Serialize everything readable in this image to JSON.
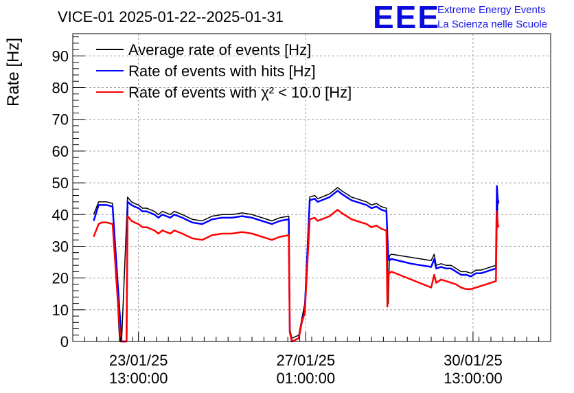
{
  "chart_data": {
    "type": "line",
    "title": "VICE-01 2025-01-22--2025-01-31",
    "ylabel": "Rate [Hz]",
    "xlabel": "",
    "ylim": [
      0,
      97
    ],
    "yticks": [
      "0",
      "10",
      "20",
      "30",
      "40",
      "50",
      "60",
      "70",
      "80",
      "90"
    ],
    "xticks": [
      {
        "date": "23/01/25",
        "time": "13:00:00",
        "t": 33.0
      },
      {
        "date": "27/01/25",
        "time": "01:00:00",
        "t": 117.0
      },
      {
        "date": "30/01/25",
        "time": "13:00:00",
        "t": 201.0
      }
    ],
    "grid": true,
    "legend_position": "top-left",
    "series": [
      {
        "name": "Average rate of events [Hz]",
        "color": "#000000",
        "x": [
          10.5,
          13.0,
          14.5,
          17.0,
          20.0,
          23.5,
          24.5,
          27.5,
          29.5,
          31.0,
          33.0,
          35.0,
          37.0,
          39.0,
          41.0,
          43.0,
          45.0,
          47.0,
          49.0,
          51.0,
          55.0,
          60.0,
          65.0,
          70.0,
          75.0,
          80.0,
          85.0,
          90.0,
          95.0,
          100.0,
          104.0,
          108.5,
          109.0,
          110.0,
          113.5,
          115.0,
          116.5,
          119.0,
          121.5,
          123.0,
          125.0,
          127.0,
          129.0,
          131.0,
          133.0,
          135.0,
          137.5,
          140.0,
          142.5,
          145.0,
          147.5,
          150.0,
          152.5,
          155.0,
          157.5,
          158.5,
          159.0,
          160.0,
          170.0,
          180.0,
          181.5,
          182.5,
          185.0,
          187.5,
          190.0,
          192.5,
          195.0,
          197.5,
          200.0,
          202.5,
          205.0,
          207.5,
          210.0,
          212.5,
          213.5,
          214.0
        ],
        "y": [
          40.0,
          44.0,
          44.0,
          44.0,
          43.5,
          0.0,
          0.0,
          45.5,
          44.0,
          43.5,
          43.0,
          42.0,
          42.0,
          41.5,
          41.0,
          40.0,
          41.0,
          40.5,
          40.0,
          41.0,
          40.0,
          38.5,
          38.0,
          39.5,
          40.0,
          40.0,
          40.5,
          40.0,
          39.0,
          38.0,
          39.0,
          39.5,
          4.0,
          1.0,
          2.0,
          7.0,
          12.0,
          45.5,
          46.0,
          45.0,
          45.5,
          46.0,
          46.5,
          47.5,
          48.5,
          47.5,
          46.5,
          45.5,
          45.0,
          44.5,
          44.0,
          43.0,
          43.5,
          42.5,
          42.0,
          12.0,
          27.0,
          27.5,
          26.5,
          25.5,
          27.5,
          24.0,
          24.5,
          24.0,
          24.0,
          23.0,
          22.0,
          22.0,
          21.5,
          22.5,
          22.5,
          23.0,
          23.5,
          24.0,
          45.0,
          44.0
        ]
      },
      {
        "name": "Rate of events with hits [Hz]",
        "color": "#0000ff",
        "x": [
          10.5,
          13.0,
          14.5,
          17.0,
          20.0,
          24.5,
          27.0,
          27.5,
          29.5,
          31.0,
          33.0,
          35.0,
          37.0,
          39.0,
          41.0,
          43.0,
          45.0,
          47.0,
          49.0,
          51.0,
          55.0,
          60.0,
          65.0,
          70.0,
          75.0,
          80.0,
          85.0,
          90.0,
          95.0,
          100.0,
          104.0,
          108.5,
          109.0,
          110.0,
          113.5,
          115.0,
          116.5,
          119.0,
          121.5,
          123.0,
          125.0,
          127.0,
          129.0,
          131.0,
          133.0,
          135.0,
          137.5,
          140.0,
          142.5,
          145.0,
          147.5,
          150.0,
          152.5,
          155.0,
          157.5,
          158.5,
          159.0,
          160.0,
          170.0,
          180.0,
          181.5,
          182.5,
          185.0,
          187.5,
          190.0,
          192.5,
          195.0,
          197.5,
          200.0,
          202.5,
          205.0,
          207.5,
          210.0,
          212.5,
          213.0,
          213.5,
          214.0
        ],
        "y": [
          38.0,
          43.0,
          43.0,
          43.0,
          42.5,
          0.0,
          0.0,
          44.0,
          43.0,
          42.5,
          42.0,
          41.0,
          41.0,
          40.5,
          40.0,
          39.0,
          40.0,
          39.5,
          39.0,
          40.0,
          39.0,
          37.5,
          37.0,
          38.5,
          39.0,
          39.0,
          39.5,
          39.0,
          38.0,
          37.0,
          38.0,
          38.5,
          3.0,
          0.0,
          1.0,
          6.0,
          10.0,
          44.5,
          45.0,
          44.0,
          44.5,
          45.0,
          45.5,
          46.5,
          47.5,
          46.5,
          45.5,
          44.5,
          44.0,
          43.5,
          43.0,
          42.0,
          42.5,
          41.5,
          41.0,
          26.0,
          25.5,
          26.0,
          24.5,
          23.5,
          26.0,
          23.0,
          23.5,
          23.0,
          23.0,
          22.0,
          21.0,
          21.0,
          20.5,
          21.5,
          21.5,
          22.0,
          22.5,
          23.0,
          49.0,
          44.0,
          43.5
        ]
      },
      {
        "name": "Rate of events with χ² < 10.0 [Hz]",
        "color": "#ff0000",
        "x": [
          10.5,
          13.0,
          14.5,
          17.0,
          20.0,
          24.0,
          27.0,
          27.5,
          29.5,
          31.0,
          33.0,
          35.0,
          37.0,
          39.0,
          41.0,
          43.0,
          45.0,
          47.0,
          49.0,
          51.0,
          55.0,
          60.0,
          65.0,
          70.0,
          75.0,
          80.0,
          85.0,
          90.0,
          95.0,
          100.0,
          104.0,
          108.5,
          109.0,
          110.0,
          113.5,
          115.0,
          116.5,
          119.0,
          121.5,
          123.0,
          125.0,
          127.0,
          129.0,
          131.0,
          133.0,
          135.0,
          137.5,
          140.0,
          142.5,
          145.0,
          147.5,
          150.0,
          152.5,
          155.0,
          157.5,
          158.0,
          158.5,
          159.0,
          160.0,
          170.0,
          180.0,
          181.5,
          182.5,
          185.0,
          187.5,
          190.0,
          192.5,
          195.0,
          197.5,
          200.0,
          202.5,
          205.0,
          207.5,
          210.0,
          212.5,
          213.0,
          213.5,
          214.0
        ],
        "y": [
          33.0,
          37.0,
          37.5,
          37.5,
          37.0,
          0.0,
          0.0,
          39.5,
          38.0,
          37.5,
          37.0,
          36.0,
          36.0,
          35.5,
          35.0,
          34.0,
          35.0,
          34.5,
          34.0,
          35.0,
          34.0,
          32.5,
          32.0,
          33.5,
          34.0,
          34.0,
          34.5,
          34.0,
          33.0,
          32.0,
          33.0,
          33.5,
          3.0,
          0.0,
          1.0,
          6.0,
          9.0,
          38.5,
          39.0,
          38.0,
          38.5,
          39.0,
          39.5,
          40.5,
          41.5,
          40.5,
          39.5,
          38.5,
          38.0,
          37.5,
          37.0,
          36.0,
          36.5,
          35.5,
          35.0,
          11.0,
          22.0,
          21.5,
          22.0,
          19.5,
          17.0,
          21.0,
          18.5,
          19.5,
          19.0,
          18.5,
          18.0,
          17.0,
          16.5,
          16.5,
          17.0,
          17.5,
          18.0,
          18.5,
          19.0,
          41.0,
          36.5,
          36.0
        ]
      }
    ]
  },
  "logo": {
    "mark": "EEE",
    "line1": "Extreme Energy Events",
    "line2": "La Scienza nelle Scuole"
  }
}
